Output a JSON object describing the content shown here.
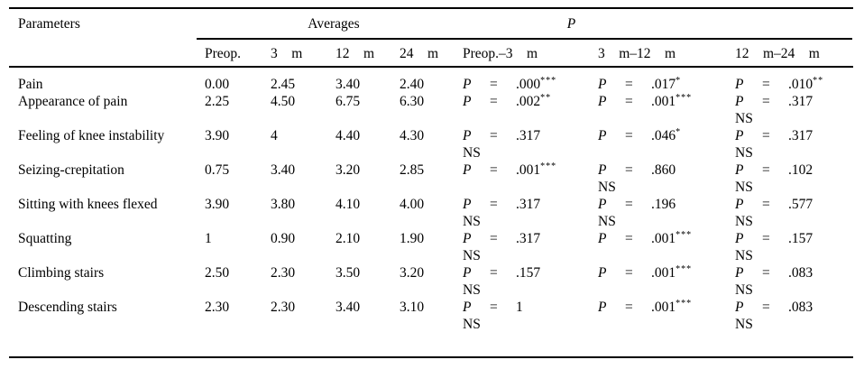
{
  "table": {
    "header": {
      "parameters": "Parameters",
      "averages_group": "Averages",
      "p_group": "P",
      "avg_cols": [
        "Preop.",
        "3    m",
        "12    m",
        "24    m"
      ],
      "p_cols": [
        "Preop.–3    m",
        "3    m–12    m",
        "12    m–24    m"
      ]
    },
    "p_symbol": "P",
    "eq_symbol": "=",
    "ns_label": "NS",
    "text_color": "#000000",
    "background_color": "#ffffff",
    "rows": [
      {
        "label": "Pain",
        "avgs": [
          "0.00",
          "2.45",
          "3.40",
          "2.40"
        ],
        "p": [
          {
            "value": ".000",
            "stars": "***",
            "ns": false
          },
          {
            "value": ".017",
            "stars": "*",
            "ns": false
          },
          {
            "value": ".010",
            "stars": "**",
            "ns": false
          }
        ]
      },
      {
        "label": "Appearance of pain",
        "avgs": [
          "2.25",
          "4.50",
          "6.75",
          "6.30"
        ],
        "p": [
          {
            "value": ".002",
            "stars": "**",
            "ns": false
          },
          {
            "value": ".001",
            "stars": "***",
            "ns": false
          },
          {
            "value": ".317",
            "stars": "",
            "ns": true
          }
        ]
      },
      {
        "label": "Feeling of knee instability",
        "avgs": [
          "3.90",
          "4",
          "4.40",
          "4.30"
        ],
        "p": [
          {
            "value": ".317",
            "stars": "",
            "ns": true
          },
          {
            "value": ".046",
            "stars": "*",
            "ns": false
          },
          {
            "value": ".317",
            "stars": "",
            "ns": true
          }
        ]
      },
      {
        "label": "Seizing-crepitation",
        "avgs": [
          "0.75",
          "3.40",
          "3.20",
          "2.85"
        ],
        "p": [
          {
            "value": ".001",
            "stars": "***",
            "ns": false
          },
          {
            "value": ".860",
            "stars": "",
            "ns": true
          },
          {
            "value": ".102",
            "stars": "",
            "ns": true
          }
        ]
      },
      {
        "label": "Sitting with knees flexed",
        "avgs": [
          "3.90",
          "3.80",
          "4.10",
          "4.00"
        ],
        "p": [
          {
            "value": ".317",
            "stars": "",
            "ns": true
          },
          {
            "value": ".196",
            "stars": "",
            "ns": true
          },
          {
            "value": ".577",
            "stars": "",
            "ns": true
          }
        ]
      },
      {
        "label": "Squatting",
        "avgs": [
          "1",
          "0.90",
          "2.10",
          "1.90"
        ],
        "p": [
          {
            "value": ".317",
            "stars": "",
            "ns": true
          },
          {
            "value": ".001",
            "stars": "***",
            "ns": false
          },
          {
            "value": ".157",
            "stars": "",
            "ns": true
          }
        ]
      },
      {
        "label": "Climbing stairs",
        "avgs": [
          "2.50",
          "2.30",
          "3.50",
          "3.20"
        ],
        "p": [
          {
            "value": ".157",
            "stars": "",
            "ns": true
          },
          {
            "value": ".001",
            "stars": "***",
            "ns": false
          },
          {
            "value": ".083",
            "stars": "",
            "ns": true
          }
        ]
      },
      {
        "label": "Descending stairs",
        "avgs": [
          "2.30",
          "2.30",
          "3.40",
          "3.10"
        ],
        "p": [
          {
            "value": "1",
            "stars": "",
            "ns": true
          },
          {
            "value": ".001",
            "stars": "***",
            "ns": false
          },
          {
            "value": ".083",
            "stars": "",
            "ns": true
          }
        ]
      }
    ]
  }
}
